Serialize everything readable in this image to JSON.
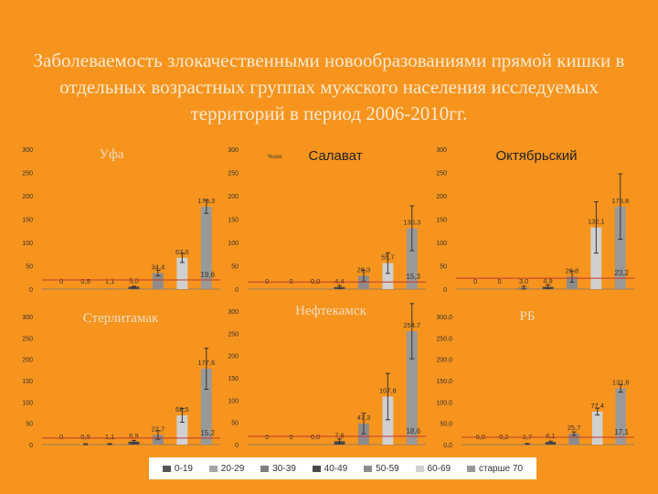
{
  "title": "Заболеваемость злокачественными новообразованиями прямой кишки в отдельных возрастных группах мужского населения исследуемых территорий в период 2006-2010гг.",
  "chart_data": [
    {
      "type": "bar",
      "title": "Уфа",
      "categories": [
        "0-19",
        "20-29",
        "30-39",
        "40-49",
        "50-59",
        "60-69",
        "старше 70"
      ],
      "values": [
        0,
        0.5,
        1.1,
        5.0,
        34.4,
        67.0,
        176.3
      ],
      "value_labels": [
        "0",
        "0,5",
        "1,1",
        "5,0",
        "34,4",
        "67,0",
        "176,3"
      ],
      "reference_value": 19.6,
      "reference_label": "19,6",
      "ylim": [
        0,
        300
      ],
      "yticks": [
        "0",
        "50",
        "100",
        "150",
        "200",
        "250",
        "300"
      ],
      "error_bars": [
        0,
        0,
        0,
        1,
        6,
        10,
        14
      ]
    },
    {
      "type": "bar",
      "title": "Салават",
      "subtitle": "%ооо",
      "categories": [
        "0-19",
        "20-29",
        "30-39",
        "40-49",
        "50-59",
        "60-69",
        "старше 70"
      ],
      "values": [
        0,
        0,
        0,
        4.4,
        28.3,
        55.7,
        130.3
      ],
      "value_labels": [
        "0",
        "0",
        "0,0",
        "4,4",
        "28,3",
        "55,7",
        "130,3"
      ],
      "reference_value": 15.3,
      "reference_label": "15,3",
      "ylim": [
        0,
        300
      ],
      "yticks": [
        "0",
        "50",
        "100",
        "150",
        "200",
        "250",
        "300"
      ],
      "error_bars": [
        0,
        0,
        0,
        3,
        12,
        22,
        48
      ]
    },
    {
      "type": "bar",
      "title": "Октябрьский",
      "categories": [
        "0-19",
        "20-29",
        "30-39",
        "40-49",
        "50-59",
        "60-69",
        "старше 70"
      ],
      "values": [
        0,
        0,
        3.0,
        4.9,
        26.8,
        132.1,
        176.8
      ],
      "value_labels": [
        "0",
        "0",
        "3,0",
        "4,9",
        "26,8",
        "132,1",
        "176,8"
      ],
      "reference_value": 23.2,
      "reference_label": "23,2",
      "ylim": [
        0,
        300
      ],
      "yticks": [
        "0",
        "50",
        "100",
        "150",
        "200",
        "250",
        "300"
      ],
      "error_bars": [
        0,
        0,
        3,
        4,
        12,
        55,
        70
      ]
    },
    {
      "type": "bar",
      "title": "Стерлитамак",
      "categories": [
        "0-19",
        "20-29",
        "30-39",
        "40-49",
        "50-59",
        "60-69",
        "старше 70"
      ],
      "values": [
        0,
        0.9,
        1.1,
        6.9,
        22.7,
        68.5,
        177.6
      ],
      "value_labels": [
        "0",
        "0,9",
        "1,1",
        "6,9",
        "22,7",
        "68,5",
        "177,6"
      ],
      "reference_value": 15.2,
      "reference_label": "15,2",
      "ylim": [
        0,
        300
      ],
      "yticks": [
        "0",
        "50",
        "100",
        "150",
        "200",
        "250",
        "300"
      ],
      "error_bars": [
        0,
        1,
        1,
        3,
        10,
        16,
        48
      ]
    },
    {
      "type": "bar",
      "title": "Нефтекамск",
      "categories": [
        "0-19",
        "20-29",
        "30-39",
        "40-49",
        "50-59",
        "60-69",
        "старше 70"
      ],
      "values": [
        0,
        0,
        0,
        7.6,
        47.3,
        107.8,
        254.7
      ],
      "value_labels": [
        "0",
        "0",
        "0,0",
        "7,6",
        "47,3",
        "107,8",
        "254,7"
      ],
      "reference_value": 18.6,
      "reference_label": "18,6",
      "ylim": [
        0,
        300
      ],
      "yticks": [
        "0",
        "50",
        "100",
        "150",
        "200",
        "250",
        "300"
      ],
      "error_bars": [
        0,
        0,
        0,
        5,
        23,
        52,
        62
      ]
    },
    {
      "type": "bar",
      "title": "РБ",
      "categories": [
        "0-19",
        "20-29",
        "30-39",
        "40-49",
        "50-59",
        "60-69",
        "старше 70"
      ],
      "values": [
        0,
        0.2,
        1.7,
        6.1,
        25.7,
        77.4,
        131.8
      ],
      "value_labels": [
        "0,0",
        "0,2",
        "1,7",
        "6,1",
        "25,7",
        "77,4",
        "131,8"
      ],
      "reference_value": 17.1,
      "reference_label": "17,1",
      "ylim": [
        0,
        300
      ],
      "yticks": [
        "0,0",
        "50,0",
        "100,0",
        "150,0",
        "200,0",
        "250,0",
        "300,0"
      ],
      "error_bars": [
        0,
        0,
        1,
        2,
        4,
        8,
        9
      ]
    }
  ],
  "legend": {
    "placement": "bottom",
    "items": [
      {
        "label": "0-19",
        "color": "#555555"
      },
      {
        "label": "20-29",
        "color": "#A6A6A6"
      },
      {
        "label": "30-39",
        "color": "#7F7F7F"
      },
      {
        "label": "40-49",
        "color": "#4A4A4A"
      },
      {
        "label": "50-59",
        "color": "#8C8C8C"
      },
      {
        "label": "60-69",
        "color": "#D0D0D0"
      },
      {
        "label": "старше 70",
        "color": "#999999"
      }
    ]
  },
  "colors": {
    "background": "#F7941D",
    "panel": "#F7941D",
    "reference_line": "#C0392B",
    "error_bar": "#333333"
  }
}
